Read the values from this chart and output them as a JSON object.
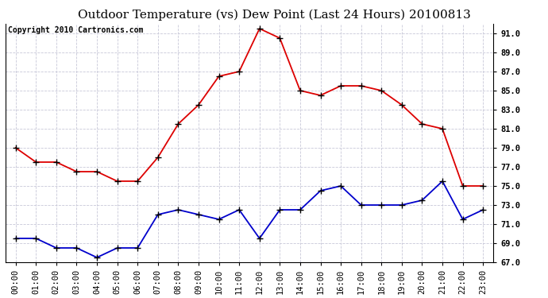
{
  "title": "Outdoor Temperature (vs) Dew Point (Last 24 Hours) 20100813",
  "copyright": "Copyright 2010 Cartronics.com",
  "x_labels": [
    "00:00",
    "01:00",
    "02:00",
    "03:00",
    "04:00",
    "05:00",
    "06:00",
    "07:00",
    "08:00",
    "09:00",
    "10:00",
    "11:00",
    "12:00",
    "13:00",
    "14:00",
    "15:00",
    "16:00",
    "17:00",
    "18:00",
    "19:00",
    "20:00",
    "21:00",
    "22:00",
    "23:00"
  ],
  "temp_red": [
    79.0,
    77.5,
    77.5,
    76.5,
    76.5,
    75.5,
    75.5,
    78.0,
    81.5,
    83.5,
    86.5,
    87.0,
    91.5,
    90.5,
    85.0,
    84.5,
    85.5,
    85.5,
    85.0,
    83.5,
    81.5,
    81.0,
    75.0,
    75.0
  ],
  "dew_blue": [
    69.5,
    69.5,
    68.5,
    68.5,
    67.5,
    68.5,
    68.5,
    72.0,
    72.5,
    72.0,
    71.5,
    72.5,
    69.5,
    72.5,
    72.5,
    74.5,
    75.0,
    73.0,
    73.0,
    73.0,
    73.5,
    75.5,
    71.5,
    72.5
  ],
  "ylim": [
    67.0,
    92.0
  ],
  "yticks": [
    67.0,
    69.0,
    71.0,
    73.0,
    75.0,
    77.0,
    79.0,
    81.0,
    83.0,
    85.0,
    87.0,
    89.0,
    91.0
  ],
  "bg_color": "#ffffff",
  "plot_bg": "#ffffff",
  "grid_color": "#c8c8d8",
  "red_color": "#dd0000",
  "blue_color": "#0000cc",
  "title_fontsize": 11,
  "copyright_fontsize": 7,
  "tick_fontsize": 7.5,
  "marker_size_red": 4,
  "marker_size_blue": 3.5,
  "linewidth": 1.3
}
